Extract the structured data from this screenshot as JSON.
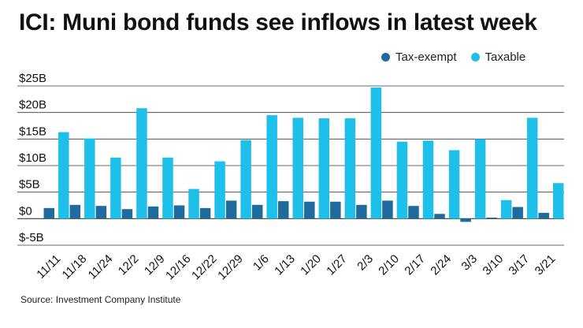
{
  "chart_data": {
    "type": "bar",
    "title": "ICI: Muni bond funds see inflows in latest week",
    "categories": [
      "11/11",
      "11/18",
      "11/24",
      "12/2",
      "12/9",
      "12/16",
      "12/22",
      "12/29",
      "1/6",
      "1/13",
      "1/20",
      "1/27",
      "2/3",
      "2/10",
      "2/17",
      "2/24",
      "3/3",
      "3/10",
      "3/17",
      "3/21"
    ],
    "series": [
      {
        "name": "Tax-exempt",
        "color": "#1f6b9e",
        "values": [
          2.0,
          2.6,
          2.4,
          1.8,
          2.3,
          2.5,
          2.0,
          3.4,
          2.6,
          3.3,
          3.2,
          3.2,
          2.6,
          3.4,
          2.4,
          0.9,
          -0.6,
          0.2,
          2.2,
          1.1
        ]
      },
      {
        "name": "Taxable",
        "color": "#1ec0ea",
        "values": [
          16.3,
          15.1,
          11.5,
          20.8,
          11.5,
          5.6,
          10.8,
          14.8,
          19.5,
          19.0,
          18.9,
          18.9,
          24.7,
          14.5,
          14.7,
          12.9,
          15.0,
          3.5,
          19.0,
          6.7
        ]
      }
    ],
    "yticks": [
      -5,
      0,
      5,
      10,
      15,
      20,
      25
    ],
    "ytick_labels": [
      "$-5B",
      "$0",
      "$5B",
      "$10B",
      "$15B",
      "$20B",
      "$25B"
    ],
    "ylim": [
      -5,
      25
    ],
    "xlabel": "",
    "ylabel": "",
    "grid": true,
    "legend_position": "top-right"
  },
  "source": "Source: Investment Company Institute"
}
